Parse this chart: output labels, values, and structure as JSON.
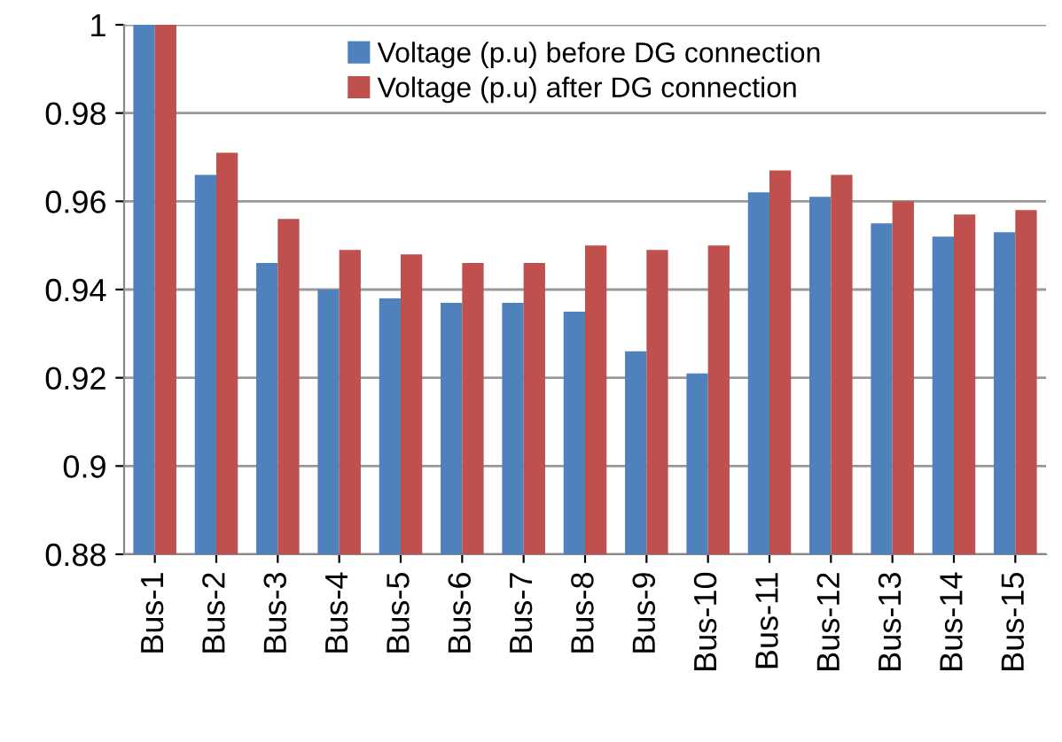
{
  "chart_data": {
    "type": "bar",
    "categories": [
      "Bus-1",
      "Bus-2",
      "Bus-3",
      "Bus-4",
      "Bus-5",
      "Bus-6",
      "Bus-7",
      "Bus-8",
      "Bus-9",
      "Bus-10",
      "Bus-11",
      "Bus-12",
      "Bus-13",
      "Bus-14",
      "Bus-15"
    ],
    "series": [
      {
        "name": "Voltage (p.u) before DG connection",
        "color": "#4f81bd",
        "values": [
          1,
          0.966,
          0.946,
          0.94,
          0.938,
          0.937,
          0.937,
          0.935,
          0.926,
          0.921,
          0.962,
          0.961,
          0.955,
          0.952,
          0.953
        ]
      },
      {
        "name": "Voltage (p.u) after DG connection",
        "color": "#c0504d",
        "values": [
          1,
          0.971,
          0.956,
          0.949,
          0.948,
          0.946,
          0.946,
          0.95,
          0.949,
          0.95,
          0.967,
          0.966,
          0.96,
          0.957,
          0.958
        ]
      }
    ],
    "ylim": [
      0.88,
      1
    ],
    "yticks": [
      {
        "value": 0.88,
        "label": "0.88"
      },
      {
        "value": 0.9,
        "label": "0.9"
      },
      {
        "value": 0.92,
        "label": "0.92"
      },
      {
        "value": 0.94,
        "label": "0.94"
      },
      {
        "value": 0.96,
        "label": "0.96"
      },
      {
        "value": 0.98,
        "label": "0.98"
      },
      {
        "value": 1,
        "label": "1"
      }
    ],
    "grid": "y",
    "legend": "top"
  }
}
